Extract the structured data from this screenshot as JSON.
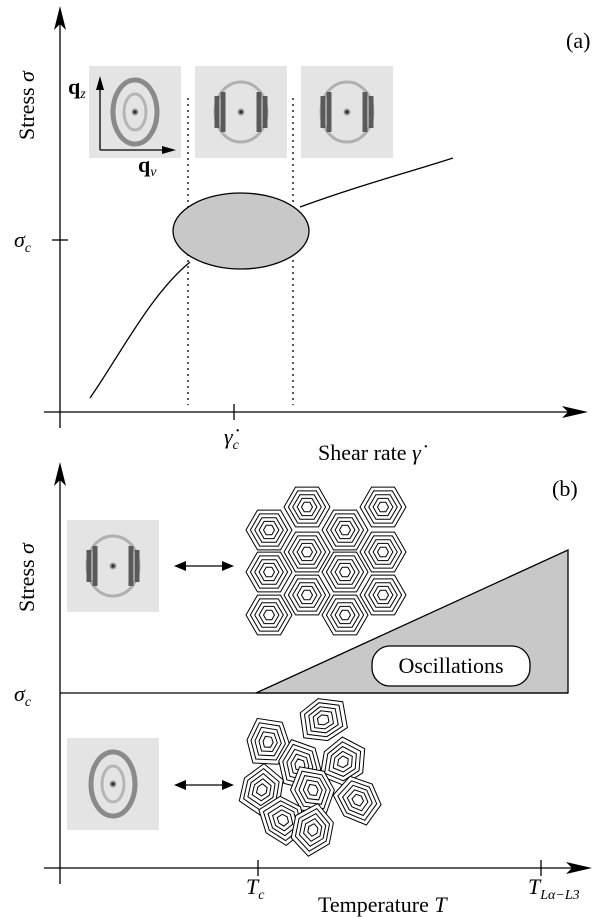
{
  "panel_a": {
    "label": "(a)",
    "y_axis": {
      "text": "Stress",
      "symbol": "σ"
    },
    "y_tick": {
      "symbol": "σ",
      "subscript": "c"
    },
    "x_axis": {
      "text": "Shear rate",
      "symbol": "γ̇"
    },
    "x_tick": {
      "symbol": "γ̇",
      "subscript": "c"
    },
    "inset_axes": {
      "vertical": {
        "symbol": "q",
        "subscript": "z"
      },
      "horizontal": {
        "symbol": "q",
        "subscript": "v"
      }
    }
  },
  "panel_b": {
    "label": "(b)",
    "y_axis": {
      "text": "Stress",
      "symbol": "σ"
    },
    "y_tick": {
      "symbol": "σ",
      "subscript": "c"
    },
    "x_axis": {
      "text": "Temperature",
      "symbol": "T"
    },
    "x_ticks": [
      {
        "symbol": "T",
        "subscript": "c"
      },
      {
        "symbol": "T",
        "subscript": "Lα−L3"
      }
    ],
    "region_label": "Oscillations"
  }
}
